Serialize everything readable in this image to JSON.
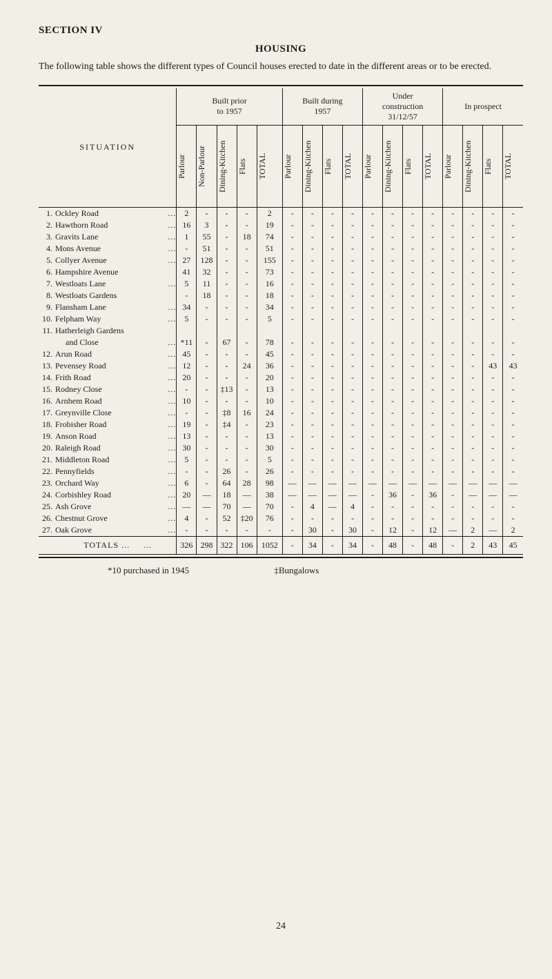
{
  "section_title": "SECTION IV",
  "heading": "HOUSING",
  "intro": "The following table shows the different types of Council houses erected to date in the different areas or to be erected.",
  "situation_label": "SITUATION",
  "groups": [
    {
      "label": "Built prior\nto 1957",
      "cols": [
        "Parlour",
        "Non-Parlour",
        "Dining-Kitchen",
        "Flats",
        "TOTAL"
      ]
    },
    {
      "label": "Built during\n1957",
      "cols": [
        "Parlour",
        "Dining-Kitchen",
        "Flats",
        "TOTAL"
      ]
    },
    {
      "label": "Under\nconstruction\n31/12/57",
      "cols": [
        "Parlour",
        "Dining-Kitchen",
        "Flats",
        "TOTAL"
      ]
    },
    {
      "label": "In prospect",
      "cols": [
        "Parlour",
        "Dining-Kitchen",
        "Flats",
        "TOTAL"
      ]
    }
  ],
  "rows": [
    {
      "n": "1.",
      "name": "Ockley Road",
      "d": "...",
      "c": [
        "2",
        "-",
        "-",
        "-",
        "2",
        "-",
        "-",
        "-",
        "-",
        "-",
        "-",
        "-",
        "-",
        "-",
        "-",
        "-",
        "-"
      ]
    },
    {
      "n": "2.",
      "name": "Hawthorn Road",
      "d": "...",
      "c": [
        "16",
        "3",
        "-",
        "-",
        "19",
        "-",
        "-",
        "-",
        "-",
        "-",
        "-",
        "-",
        "-",
        "-",
        "-",
        "-",
        "-"
      ]
    },
    {
      "n": "3.",
      "name": "Gravits Lane",
      "d": "...",
      "c": [
        "1",
        "55",
        "-",
        "18",
        "74",
        "-",
        "-",
        "-",
        "-",
        "-",
        "-",
        "-",
        "-",
        "-",
        "-",
        "-",
        "-"
      ]
    },
    {
      "n": "4.",
      "name": "Mons Avenue",
      "d": "...",
      "c": [
        "-",
        "51",
        "-",
        "-",
        "51",
        "-",
        "-",
        "-",
        "-",
        "-",
        "-",
        "-",
        "-",
        "-",
        "-",
        "-",
        "-"
      ]
    },
    {
      "n": "5.",
      "name": "Collyer Avenue",
      "d": "...",
      "c": [
        "27",
        "128",
        "-",
        "-",
        "155",
        "-",
        "-",
        "-",
        "-",
        "-",
        "-",
        "-",
        "-",
        "-",
        "-",
        "-",
        "-"
      ]
    },
    {
      "n": "6.",
      "name": "Hampshire Avenue",
      "d": "",
      "c": [
        "41",
        "32",
        "-",
        "-",
        "73",
        "-",
        "-",
        "-",
        "-",
        "-",
        "-",
        "-",
        "-",
        "-",
        "-",
        "-",
        "-"
      ]
    },
    {
      "n": "7.",
      "name": "Westloats Lane",
      "d": "...",
      "c": [
        "5",
        "11",
        "-",
        "-",
        "16",
        "-",
        "-",
        "-",
        "-",
        "-",
        "-",
        "-",
        "-",
        "-",
        "-",
        "-",
        "-"
      ]
    },
    {
      "n": "8.",
      "name": "Westloats Gardens",
      "d": "",
      "c": [
        "-",
        "18",
        "-",
        "-",
        "18",
        "-",
        "-",
        "-",
        "-",
        "-",
        "-",
        "-",
        "-",
        "-",
        "-",
        "-",
        "-"
      ]
    },
    {
      "n": "9.",
      "name": "Flansham Lane",
      "d": "...",
      "c": [
        "34",
        "-",
        "-",
        "-",
        "34",
        "-",
        "-",
        "-",
        "-",
        "-",
        "-",
        "-",
        "-",
        "-",
        "-",
        "-",
        "-"
      ]
    },
    {
      "n": "10.",
      "name": "Felpham Way",
      "d": "...",
      "c": [
        "5",
        "-",
        "-",
        "-",
        "5",
        "-",
        "-",
        "-",
        "-",
        "-",
        "-",
        "-",
        "-",
        "-",
        "-",
        "-",
        "-"
      ]
    },
    {
      "n": "11.",
      "name": "Hatherleigh Gardens",
      "d": "",
      "c": [
        "",
        "",
        "",
        "",
        "",
        "",
        "",
        "",
        "",
        "",
        "",
        "",
        "",
        "",
        "",
        "",
        ""
      ]
    },
    {
      "n": "",
      "name": "     and Close",
      "d": "...",
      "c": [
        "*11",
        "-",
        "67",
        "-",
        "78",
        "-",
        "-",
        "-",
        "-",
        "-",
        "-",
        "-",
        "-",
        "-",
        "-",
        "-",
        "-"
      ]
    },
    {
      "n": "12.",
      "name": "Arun Road",
      "d": "...",
      "c": [
        "45",
        "-",
        "-",
        "-",
        "45",
        "-",
        "-",
        "-",
        "-",
        "-",
        "-",
        "-",
        "-",
        "-",
        "-",
        "-",
        "-"
      ]
    },
    {
      "n": "13.",
      "name": "Pevensey Road",
      "d": "...",
      "c": [
        "12",
        "-",
        "-",
        "24",
        "36",
        "-",
        "-",
        "-",
        "-",
        "-",
        "-",
        "-",
        "-",
        "-",
        "-",
        "43",
        "43"
      ]
    },
    {
      "n": "14.",
      "name": "Frith Road",
      "d": "...",
      "c": [
        "20",
        "-",
        "-",
        "-",
        "20",
        "-",
        "-",
        "-",
        "-",
        "-",
        "-",
        "-",
        "-",
        "-",
        "-",
        "-",
        "-"
      ]
    },
    {
      "n": "15.",
      "name": "Rodney Close",
      "d": "...",
      "c": [
        "-",
        "-",
        "‡13",
        "-",
        "13",
        "-",
        "-",
        "-",
        "-",
        "-",
        "-",
        "-",
        "-",
        "-",
        "-",
        "-",
        "-"
      ]
    },
    {
      "n": "16.",
      "name": "Arnhem Road",
      "d": "...",
      "c": [
        "10",
        "-",
        "-",
        "-",
        "10",
        "-",
        "-",
        "-",
        "-",
        "-",
        "-",
        "-",
        "-",
        "-",
        "-",
        "-",
        "-"
      ]
    },
    {
      "n": "17.",
      "name": "Greynville Close",
      "d": "...",
      "c": [
        "-",
        "-",
        "‡8",
        "16",
        "24",
        "-",
        "-",
        "-",
        "-",
        "-",
        "-",
        "-",
        "-",
        "-",
        "-",
        "-",
        "-"
      ]
    },
    {
      "n": "18.",
      "name": "Frobisher Road",
      "d": "...",
      "c": [
        "19",
        "-",
        "‡4",
        "-",
        "23",
        "-",
        "-",
        "-",
        "-",
        "-",
        "-",
        "-",
        "-",
        "-",
        "-",
        "-",
        "-"
      ]
    },
    {
      "n": "19.",
      "name": "Anson Road",
      "d": "...",
      "c": [
        "13",
        "-",
        "-",
        "-",
        "13",
        "-",
        "-",
        "-",
        "-",
        "-",
        "-",
        "-",
        "-",
        "-",
        "-",
        "-",
        "-"
      ]
    },
    {
      "n": "20.",
      "name": "Raleigh Road",
      "d": "...",
      "c": [
        "30",
        "-",
        "-",
        "-",
        "30",
        "-",
        "-",
        "-",
        "-",
        "-",
        "-",
        "-",
        "-",
        "-",
        "-",
        "-",
        "-"
      ]
    },
    {
      "n": "21.",
      "name": "Middleton Road",
      "d": "...",
      "c": [
        "5",
        "-",
        "-",
        "-",
        "5",
        "-",
        "-",
        "-",
        "-",
        "-",
        "-",
        "-",
        "-",
        "-",
        "-",
        "-",
        "-"
      ]
    },
    {
      "n": "22.",
      "name": "Pennyfields",
      "d": "...",
      "c": [
        "-",
        "-",
        "26",
        "-",
        "26",
        "-",
        "-",
        "-",
        "-",
        "-",
        "-",
        "-",
        "-",
        "-",
        "-",
        "-",
        "-"
      ]
    },
    {
      "n": "23.",
      "name": "Orchard Way",
      "d": "...",
      "c": [
        "6",
        "-",
        "64",
        "28",
        "98",
        "—",
        "—",
        "—",
        "—",
        "—",
        "—",
        "—",
        "—",
        "—",
        "—",
        "—",
        "—"
      ]
    },
    {
      "n": "24.",
      "name": "Corbishley Road",
      "d": "...",
      "c": [
        "20",
        "—",
        "18",
        "—",
        "38",
        "—",
        "—",
        "—",
        "—",
        "-",
        "36",
        "-",
        "36",
        "-",
        "—",
        "—",
        "—"
      ]
    },
    {
      "n": "25.",
      "name": "Ash Grove",
      "d": "...",
      "c": [
        "—",
        "—",
        "70",
        "—",
        "70",
        "-",
        "4",
        "—",
        "4",
        "-",
        "-",
        "-",
        "-",
        "-",
        "-",
        "-",
        "-"
      ]
    },
    {
      "n": "26.",
      "name": "Chestnut Grove",
      "d": "...",
      "c": [
        "4",
        "-",
        "52",
        "‡20",
        "76",
        "-",
        "-",
        "-",
        "-",
        "-",
        "-",
        "-",
        "-",
        "-",
        "-",
        "-",
        "-"
      ]
    },
    {
      "n": "27.",
      "name": "Oak Grove",
      "d": "...",
      "c": [
        "-",
        "-",
        "-",
        "-",
        "-",
        "-",
        "30",
        "-",
        "30",
        "-",
        "12",
        "-",
        "12",
        "—",
        "2",
        "—",
        "2"
      ]
    }
  ],
  "totals_label": "TOTALS ...     ...",
  "totals": [
    "326",
    "298",
    "322",
    "106",
    "1052",
    "-",
    "34",
    "-",
    "34",
    "-",
    "48",
    "-",
    "48",
    "-",
    "2",
    "43",
    "45"
  ],
  "footnote_left": "*10 purchased in 1945",
  "footnote_right": "‡Bungalows",
  "page_number": "24"
}
